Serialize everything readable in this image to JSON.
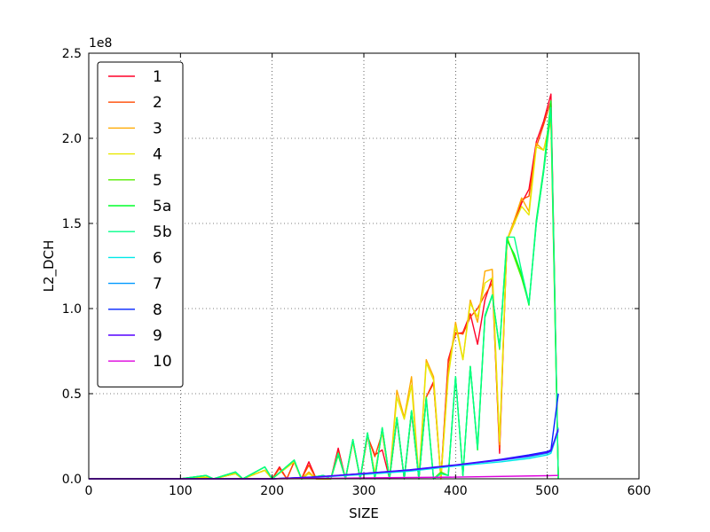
{
  "chart_data": {
    "type": "line",
    "title": "",
    "xlabel": "SIZE",
    "ylabel": "L2_DCH",
    "y_offset_label": "1e8",
    "xlim": [
      0,
      600
    ],
    "ylim": [
      0,
      250000000
    ],
    "x_ticks": [
      0,
      100,
      200,
      300,
      400,
      500,
      600
    ],
    "x_tick_labels": [
      "0",
      "100",
      "200",
      "300",
      "400",
      "500",
      "600"
    ],
    "y_ticks": [
      0,
      50000000,
      100000000,
      150000000,
      200000000,
      250000000
    ],
    "y_tick_labels": [
      "0.0",
      "0.5",
      "1.0",
      "1.5",
      "2.0",
      "2.5"
    ],
    "grid": true,
    "legend_position": "top-left",
    "series": [
      {
        "name": "1",
        "color": "#ff0029",
        "x": [
          0,
          100,
          120,
          128,
          136,
          160,
          168,
          192,
          200,
          208,
          216,
          224,
          232,
          240,
          248,
          256,
          264,
          272,
          280,
          288,
          296,
          304,
          312,
          320,
          328,
          336,
          344,
          352,
          360,
          368,
          376,
          384,
          392,
          400,
          408,
          416,
          424,
          432,
          440,
          448,
          456,
          464,
          472,
          480,
          488,
          496,
          504,
          512
        ],
        "y": [
          0,
          0,
          0,
          1000000,
          0,
          3000000,
          0,
          5000000,
          0,
          7000000,
          0,
          10000000,
          0,
          10000000,
          0,
          0,
          0,
          18000000,
          0,
          22000000,
          0,
          25000000,
          14000000,
          17000000,
          0,
          35000000,
          0,
          39000000,
          0,
          48000000,
          57000000,
          0,
          70000000,
          85000000,
          86000000,
          97000000,
          79000000,
          105000000,
          118000000,
          15000000,
          140000000,
          150000000,
          162000000,
          170000000,
          198000000,
          210000000,
          226000000,
          0
        ]
      },
      {
        "name": "2",
        "color": "#ff4a00",
        "x": [
          0,
          100,
          128,
          136,
          160,
          168,
          192,
          200,
          208,
          216,
          224,
          232,
          240,
          248,
          256,
          264,
          272,
          280,
          288,
          296,
          304,
          312,
          320,
          328,
          336,
          344,
          352,
          360,
          368,
          376,
          384,
          392,
          400,
          408,
          416,
          424,
          432,
          440,
          448,
          456,
          464,
          472,
          480,
          488,
          496,
          504,
          512
        ],
        "y": [
          0,
          0,
          1000000,
          0,
          3000000,
          0,
          5000000,
          0,
          6000000,
          0,
          10000000,
          0,
          8000000,
          0,
          0,
          0,
          16000000,
          0,
          22000000,
          0,
          25000000,
          13000000,
          27000000,
          0,
          35000000,
          0,
          39000000,
          0,
          48000000,
          56000000,
          0,
          68000000,
          86000000,
          85000000,
          95000000,
          100000000,
          108000000,
          115000000,
          18000000,
          140000000,
          152000000,
          164000000,
          166000000,
          195000000,
          208000000,
          222000000,
          0
        ]
      },
      {
        "name": "3",
        "color": "#ffaa00",
        "x": [
          0,
          100,
          128,
          136,
          160,
          168,
          192,
          200,
          224,
          232,
          240,
          248,
          256,
          264,
          272,
          280,
          288,
          296,
          304,
          312,
          320,
          328,
          336,
          344,
          352,
          360,
          368,
          376,
          384,
          392,
          400,
          408,
          416,
          424,
          432,
          440,
          448,
          456,
          464,
          472,
          480,
          488,
          496,
          504,
          512
        ],
        "y": [
          0,
          0,
          1000000,
          0,
          3000000,
          0,
          5000000,
          0,
          10000000,
          0,
          4000000,
          0,
          0,
          0,
          15000000,
          0,
          22000000,
          0,
          26000000,
          3000000,
          28000000,
          0,
          52000000,
          36000000,
          60000000,
          0,
          70000000,
          60000000,
          0,
          62000000,
          92000000,
          70000000,
          105000000,
          92000000,
          122000000,
          123000000,
          20000000,
          140000000,
          152000000,
          165000000,
          157000000,
          197000000,
          193000000,
          212000000,
          0
        ]
      },
      {
        "name": "4",
        "color": "#e8e800",
        "x": [
          0,
          100,
          128,
          136,
          160,
          168,
          192,
          200,
          224,
          232,
          240,
          248,
          256,
          264,
          272,
          280,
          288,
          296,
          304,
          312,
          320,
          328,
          336,
          344,
          352,
          360,
          368,
          376,
          384,
          392,
          400,
          408,
          416,
          424,
          432,
          440,
          448,
          456,
          464,
          472,
          480,
          488,
          496,
          504,
          512
        ],
        "y": [
          0,
          0,
          1000000,
          0,
          3000000,
          0,
          5000000,
          0,
          10000000,
          0,
          3000000,
          0,
          0,
          0,
          14000000,
          0,
          22000000,
          0,
          26000000,
          3000000,
          28000000,
          0,
          48000000,
          35000000,
          55000000,
          0,
          68000000,
          58000000,
          0,
          60000000,
          90000000,
          70000000,
          103000000,
          95000000,
          115000000,
          118000000,
          22000000,
          140000000,
          150000000,
          160000000,
          155000000,
          195000000,
          193000000,
          210000000,
          0
        ]
      },
      {
        "name": "5",
        "color": "#55ee00",
        "x": [
          0,
          100,
          128,
          136,
          160,
          168,
          192,
          200,
          224,
          232,
          256,
          264,
          272,
          280,
          288,
          296,
          304,
          312,
          320,
          328,
          336,
          344,
          352,
          360,
          368,
          376,
          384,
          392,
          400,
          408,
          416,
          424,
          432,
          440,
          448,
          456,
          464,
          472,
          480,
          488,
          496,
          504,
          512
        ],
        "y": [
          0,
          0,
          2000000,
          0,
          4000000,
          0,
          7000000,
          0,
          11000000,
          0,
          2000000,
          0,
          15000000,
          0,
          23000000,
          0,
          27000000,
          0,
          30000000,
          0,
          36000000,
          0,
          40000000,
          0,
          48000000,
          0,
          4000000,
          2000000,
          60000000,
          2000000,
          66000000,
          18000000,
          95000000,
          108000000,
          76000000,
          142000000,
          130000000,
          118000000,
          103000000,
          150000000,
          180000000,
          215000000,
          0
        ]
      },
      {
        "name": "5a",
        "color": "#00ff2a",
        "x": [
          0,
          100,
          128,
          136,
          160,
          168,
          192,
          200,
          224,
          232,
          256,
          264,
          272,
          280,
          288,
          296,
          304,
          312,
          320,
          328,
          336,
          344,
          352,
          360,
          368,
          376,
          384,
          392,
          400,
          408,
          416,
          424,
          432,
          440,
          448,
          456,
          464,
          472,
          480,
          488,
          496,
          504,
          512
        ],
        "y": [
          0,
          0,
          2000000,
          0,
          4000000,
          0,
          7000000,
          0,
          11000000,
          0,
          2000000,
          0,
          14000000,
          0,
          23000000,
          0,
          27000000,
          0,
          30000000,
          0,
          36000000,
          0,
          40000000,
          0,
          47000000,
          0,
          3000000,
          2000000,
          60000000,
          2000000,
          66000000,
          17000000,
          95000000,
          108000000,
          77000000,
          140000000,
          132000000,
          120000000,
          102000000,
          152000000,
          182000000,
          222000000,
          0
        ]
      },
      {
        "name": "5b",
        "color": "#00ff88",
        "x": [
          0,
          100,
          128,
          136,
          160,
          168,
          192,
          200,
          224,
          232,
          256,
          264,
          272,
          280,
          288,
          296,
          304,
          312,
          320,
          328,
          336,
          344,
          352,
          360,
          368,
          376,
          384,
          392,
          400,
          408,
          416,
          424,
          432,
          440,
          448,
          456,
          464,
          472,
          480,
          488,
          496,
          504,
          512
        ],
        "y": [
          0,
          0,
          2000000,
          0,
          4000000,
          0,
          7000000,
          0,
          11000000,
          0,
          2000000,
          0,
          15000000,
          0,
          23000000,
          0,
          27000000,
          0,
          30000000,
          0,
          36000000,
          0,
          40000000,
          0,
          47000000,
          0,
          3000000,
          2000000,
          60000000,
          2000000,
          66000000,
          18000000,
          96000000,
          108000000,
          77000000,
          142000000,
          142000000,
          122000000,
          103000000,
          150000000,
          180000000,
          218000000,
          0
        ]
      },
      {
        "name": "6",
        "color": "#00e8e8",
        "x": [
          0,
          100,
          200,
          250,
          300,
          350,
          400,
          450,
          480,
          500,
          504,
          512
        ],
        "y": [
          0,
          0,
          0,
          1000000,
          2500000,
          4500000,
          7500000,
          10000000,
          12000000,
          14000000,
          15000000,
          28000000
        ]
      },
      {
        "name": "7",
        "color": "#0099ff",
        "x": [
          0,
          100,
          200,
          250,
          300,
          350,
          400,
          450,
          480,
          500,
          504,
          512
        ],
        "y": [
          0,
          0,
          0,
          1000000,
          3000000,
          5000000,
          8000000,
          11000000,
          13000000,
          15000000,
          16000000,
          30000000
        ]
      },
      {
        "name": "8",
        "color": "#0022ff",
        "x": [
          0,
          100,
          200,
          250,
          300,
          350,
          400,
          450,
          480,
          500,
          504,
          512
        ],
        "y": [
          0,
          0,
          0,
          1200000,
          3200000,
          5300000,
          8200000,
          11500000,
          14000000,
          16000000,
          17000000,
          50000000
        ]
      },
      {
        "name": "9",
        "color": "#5500ff",
        "x": [
          0,
          100,
          200,
          250,
          300,
          350,
          400,
          450,
          480,
          500,
          504,
          512
        ],
        "y": [
          0,
          0,
          0,
          1100000,
          3100000,
          5100000,
          8000000,
          11200000,
          13500000,
          15500000,
          16500000,
          29000000
        ]
      },
      {
        "name": "10",
        "color": "#dd00dd",
        "x": [
          0,
          100,
          200,
          300,
          400,
          500,
          512
        ],
        "y": [
          0,
          0,
          0,
          500000,
          1000000,
          1800000,
          2000000
        ]
      }
    ]
  }
}
